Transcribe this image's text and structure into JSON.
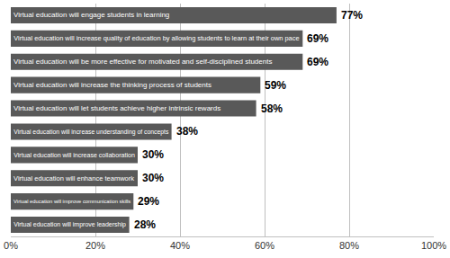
{
  "chart_data": {
    "type": "bar",
    "orientation": "horizontal",
    "categories": [
      "Virtual education will engage students in learning",
      "Virtual education will increase quality of education by allowing students to learn at their own pace",
      "Virtual education will be more effective for motivated and self-disciplined students",
      "Virtual education will increase the thinking process of students",
      "Virtual education will let students achieve higher intrinsic rewards",
      "Virtual education will increase understanding of concepts",
      "Virtual education will increase collaboration",
      "Virtual education will enhance teamwork",
      "Virtual education will improve communication skills",
      "Virtual education will improve leadership"
    ],
    "values": [
      77,
      69,
      69,
      59,
      58,
      38,
      30,
      30,
      29,
      28
    ],
    "value_labels": [
      "77%",
      "69%",
      "69%",
      "59%",
      "58%",
      "38%",
      "30%",
      "30%",
      "29%",
      "28%"
    ],
    "data_labels": true,
    "color": "#595959",
    "xlim": [
      0,
      100
    ],
    "xticks": [
      {
        "value": 0,
        "label": "0%"
      },
      {
        "value": 20,
        "label": "20%"
      },
      {
        "value": 40,
        "label": "40%"
      },
      {
        "value": 60,
        "label": "60%"
      },
      {
        "value": 80,
        "label": "80%"
      },
      {
        "value": 100,
        "label": "100%"
      }
    ],
    "grid": true
  }
}
